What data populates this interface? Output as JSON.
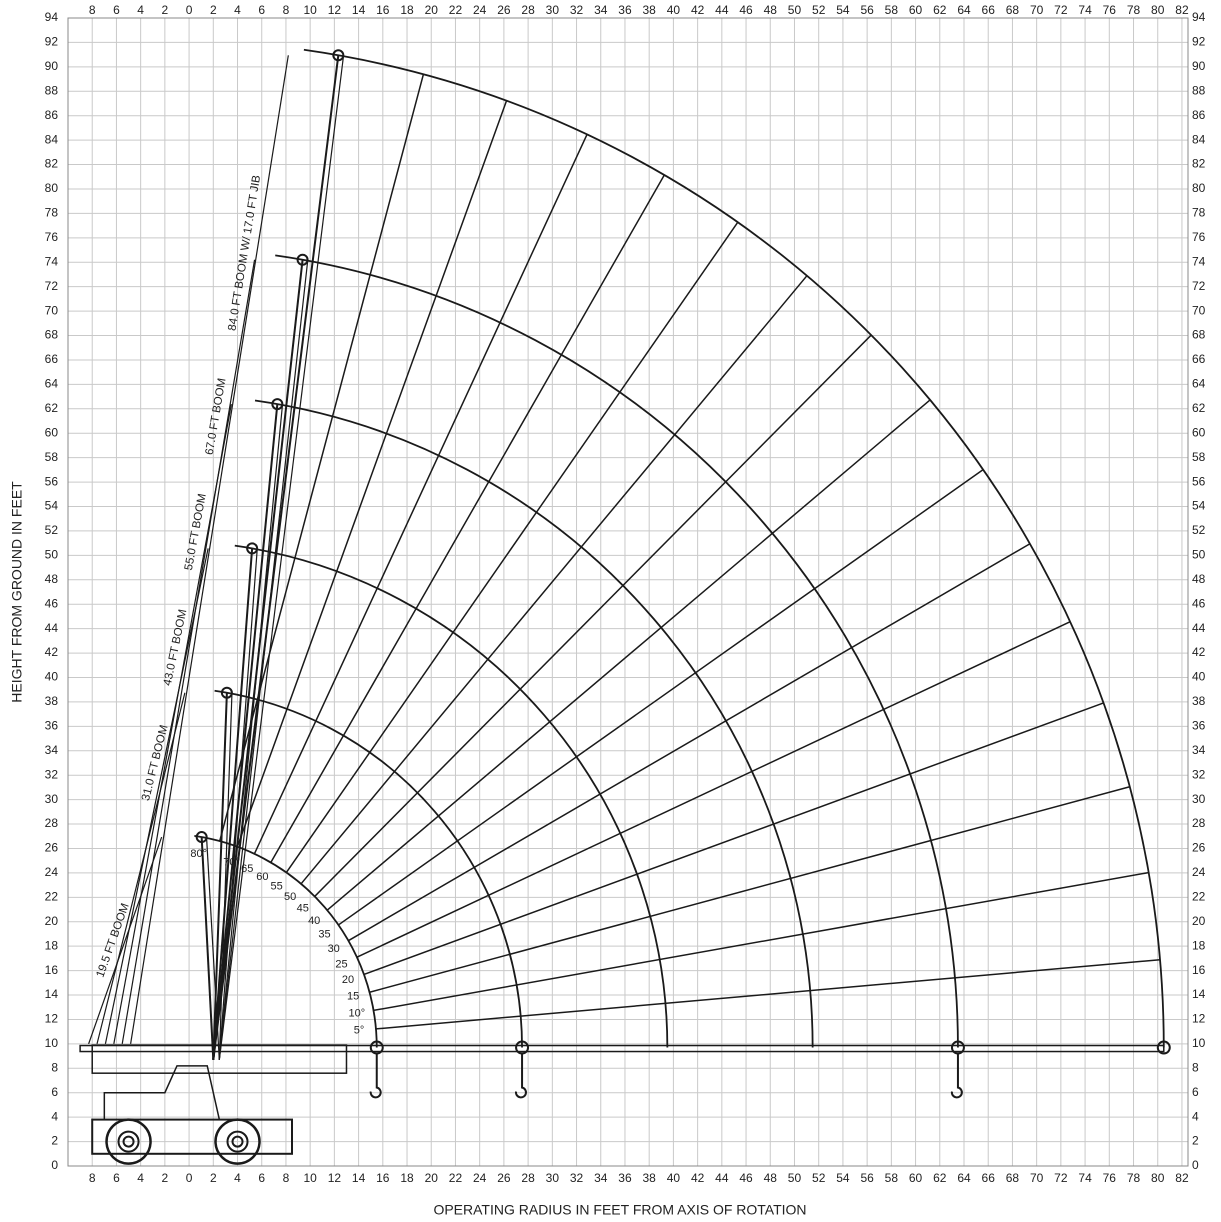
{
  "chart_data": {
    "type": "range-diagram",
    "x_label": "OPERATING RADIUS IN FEET FROM AXIS OF ROTATION",
    "y_label": "HEIGHT FROM GROUND IN FEET",
    "xlim": [
      -10,
      82.5
    ],
    "ylim": [
      0,
      94
    ],
    "xticks": [
      {
        "value": -8,
        "label": "8"
      },
      {
        "value": -6,
        "label": "6"
      },
      {
        "value": -4,
        "label": "4"
      },
      {
        "value": -2,
        "label": "2"
      },
      0,
      2,
      4,
      6,
      8,
      10,
      12,
      14,
      16,
      18,
      20,
      22,
      24,
      26,
      28,
      30,
      32,
      34,
      36,
      38,
      40,
      42,
      44,
      46,
      48,
      50,
      52,
      54,
      56,
      58,
      60,
      62,
      64,
      66,
      68,
      70,
      72,
      74,
      76,
      78,
      80,
      82
    ],
    "yticks": [
      0,
      2,
      4,
      6,
      8,
      10,
      12,
      14,
      16,
      18,
      20,
      22,
      24,
      26,
      28,
      30,
      32,
      34,
      36,
      38,
      40,
      42,
      44,
      46,
      48,
      50,
      52,
      54,
      56,
      58,
      60,
      62,
      64,
      66,
      68,
      70,
      72,
      74,
      76,
      78,
      80,
      82,
      84,
      86,
      88,
      90,
      92,
      94
    ],
    "grid": true,
    "pivot": [
      -2,
      9.7
    ],
    "booms": [
      {
        "label": "19.5 FT BOOM",
        "radius": 17.5
      },
      {
        "label": "31.0 FT BOOM",
        "radius": 29.5
      },
      {
        "label": "43.0 FT BOOM",
        "radius": 41.5
      },
      {
        "label": "55.0 FT BOOM",
        "radius": 53.5
      },
      {
        "label": "67.0 FT BOOM",
        "radius": 65.5
      },
      {
        "label": "84.0 FT BOOM W/ 17.0 FT JIB",
        "radius": 82.5
      }
    ],
    "angles": [
      5,
      10,
      15,
      20,
      25,
      30,
      35,
      40,
      45,
      50,
      55,
      60,
      65,
      70,
      75,
      80
    ],
    "angle_labels": [
      "5°",
      "10°",
      "15",
      "20",
      "25",
      "30",
      "35",
      "40",
      "45",
      "50",
      "55",
      "60",
      "65",
      "70°",
      null,
      "80°"
    ]
  }
}
